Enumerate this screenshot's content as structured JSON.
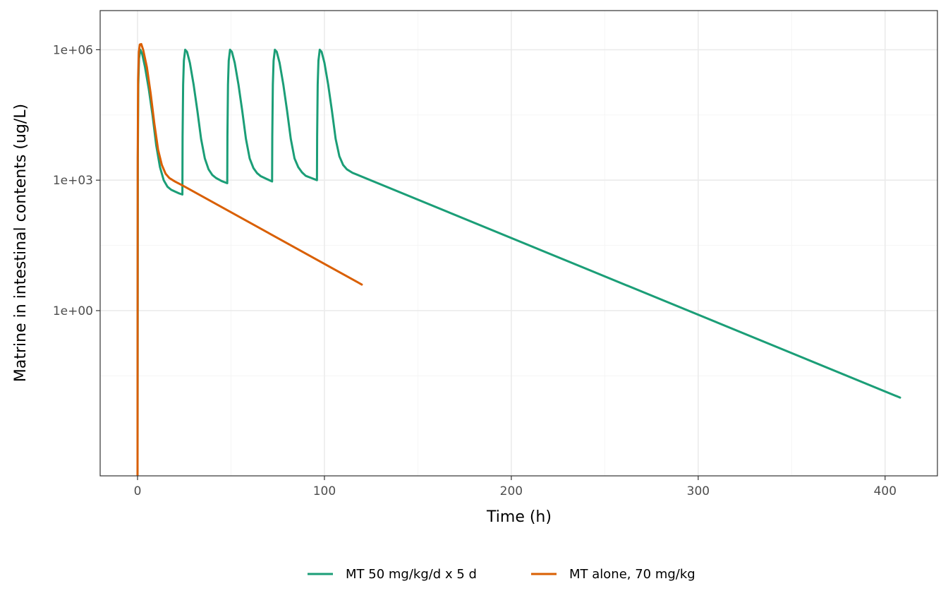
{
  "chart_data": {
    "type": "line",
    "title": "",
    "xlabel": "Time (h)",
    "ylabel": "Matrine in intestinal contents (ug/L)",
    "xlim": [
      -20,
      428
    ],
    "ylim_log10": [
      -3.8,
      6.9
    ],
    "y_scale": "log10",
    "grid": true,
    "legend_position": "bottom",
    "x_ticks": [
      {
        "value": 0,
        "label": "0"
      },
      {
        "value": 100,
        "label": "100"
      },
      {
        "value": 200,
        "label": "200"
      },
      {
        "value": 300,
        "label": "300"
      },
      {
        "value": 400,
        "label": "400"
      }
    ],
    "x_minor": [
      50,
      150,
      250,
      350
    ],
    "y_ticks": [
      {
        "log10": 6,
        "label": "1e+06"
      },
      {
        "log10": 3,
        "label": "1e+03"
      },
      {
        "log10": 0,
        "label": "1e+00"
      }
    ],
    "y_minor_log10": [
      4.5,
      1.5,
      -1.5
    ],
    "series": [
      {
        "name": "MT 50 mg/kg/d x 5 d",
        "color": "#1b9e77",
        "points_log10": [
          [
            0,
            -3.8
          ],
          [
            0.15,
            3.5
          ],
          [
            0.4,
            5.2
          ],
          [
            0.8,
            5.8
          ],
          [
            1.5,
            6.0
          ],
          [
            2.5,
            5.9
          ],
          [
            4,
            5.6
          ],
          [
            6,
            5.1
          ],
          [
            8,
            4.5
          ],
          [
            10,
            3.8
          ],
          [
            12,
            3.3
          ],
          [
            14,
            3.0
          ],
          [
            16,
            2.85
          ],
          [
            18,
            2.78
          ],
          [
            20,
            2.74
          ],
          [
            22,
            2.7
          ],
          [
            24,
            2.67
          ],
          [
            24.1,
            4.0
          ],
          [
            24.4,
            5.2
          ],
          [
            24.8,
            5.75
          ],
          [
            25.5,
            6.0
          ],
          [
            26.5,
            5.95
          ],
          [
            28,
            5.7
          ],
          [
            30,
            5.2
          ],
          [
            32,
            4.6
          ],
          [
            34,
            3.95
          ],
          [
            36,
            3.5
          ],
          [
            38,
            3.25
          ],
          [
            40,
            3.12
          ],
          [
            42,
            3.05
          ],
          [
            45,
            2.98
          ],
          [
            48,
            2.93
          ],
          [
            48.1,
            4.0
          ],
          [
            48.4,
            5.2
          ],
          [
            48.8,
            5.75
          ],
          [
            49.5,
            6.0
          ],
          [
            50.5,
            5.95
          ],
          [
            52,
            5.7
          ],
          [
            54,
            5.2
          ],
          [
            56,
            4.6
          ],
          [
            58,
            3.95
          ],
          [
            60,
            3.5
          ],
          [
            62,
            3.28
          ],
          [
            64,
            3.16
          ],
          [
            66,
            3.09
          ],
          [
            69,
            3.03
          ],
          [
            72,
            2.97
          ],
          [
            72.1,
            4.0
          ],
          [
            72.4,
            5.2
          ],
          [
            72.8,
            5.75
          ],
          [
            73.5,
            6.0
          ],
          [
            74.5,
            5.95
          ],
          [
            76,
            5.7
          ],
          [
            78,
            5.2
          ],
          [
            80,
            4.6
          ],
          [
            82,
            3.95
          ],
          [
            84,
            3.5
          ],
          [
            86,
            3.3
          ],
          [
            88,
            3.18
          ],
          [
            90,
            3.1
          ],
          [
            93,
            3.05
          ],
          [
            96,
            3.0
          ],
          [
            96.1,
            4.0
          ],
          [
            96.4,
            5.2
          ],
          [
            96.8,
            5.75
          ],
          [
            97.5,
            6.0
          ],
          [
            98.5,
            5.95
          ],
          [
            100,
            5.7
          ],
          [
            102,
            5.2
          ],
          [
            104,
            4.6
          ],
          [
            106,
            3.95
          ],
          [
            108,
            3.55
          ],
          [
            110,
            3.35
          ],
          [
            112,
            3.25
          ],
          [
            115,
            3.17
          ],
          [
            408,
            -2.0
          ]
        ]
      },
      {
        "name": "MT alone, 70 mg/kg",
        "color": "#d95f02",
        "points_log10": [
          [
            0,
            -3.8
          ],
          [
            0.1,
            3.5
          ],
          [
            0.3,
            5.3
          ],
          [
            0.7,
            5.95
          ],
          [
            1.2,
            6.12
          ],
          [
            2,
            6.13
          ],
          [
            3,
            6.0
          ],
          [
            5,
            5.6
          ],
          [
            7,
            5.0
          ],
          [
            9,
            4.3
          ],
          [
            11,
            3.7
          ],
          [
            13,
            3.35
          ],
          [
            15,
            3.15
          ],
          [
            17,
            3.05
          ],
          [
            20,
            2.97
          ],
          [
            24,
            2.88
          ],
          [
            120,
            0.6
          ]
        ]
      }
    ]
  }
}
